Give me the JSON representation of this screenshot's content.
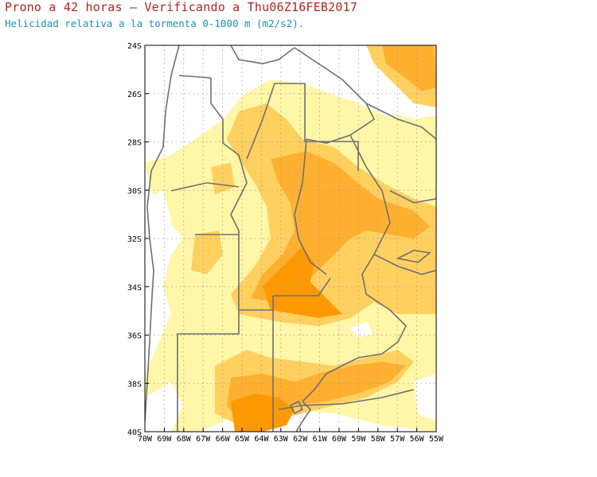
{
  "title": "Prono a 42 horas — Verificando a Thu06Z16FEB2017",
  "subtitle": "Helicidad relativa a la tormenta 0-1000 m (m2/s2).",
  "colors": {
    "shade_light": "#fff6a8",
    "shade_mid": "#ffd060",
    "shade_high": "#ffb030",
    "shade_max": "#ff9900",
    "borders": "#707070",
    "grid": "#9a9a9a",
    "title": "#b22222",
    "subtitle": "#1f8fb0"
  },
  "map": {
    "lon_range": [
      -70,
      -55
    ],
    "lat_range": [
      -40,
      -24
    ],
    "lat_labels": [
      "24S",
      "26S",
      "28S",
      "30S",
      "32S",
      "34S",
      "36S",
      "38S",
      "40S"
    ],
    "lat_values": [
      -24,
      -26,
      -28,
      -30,
      -32,
      -34,
      -36,
      -38,
      -40
    ],
    "lon_labels": [
      "70W",
      "69W",
      "68W",
      "67W",
      "66W",
      "65W",
      "64W",
      "63W",
      "62W",
      "61W",
      "60W",
      "59W",
      "58W",
      "57W",
      "56W",
      "55W"
    ],
    "lon_values": [
      -70,
      -69,
      -68,
      -67,
      -66,
      -65,
      -64,
      -63,
      -62,
      -61,
      -60,
      -59,
      -58,
      -57,
      -56,
      -55
    ]
  }
}
